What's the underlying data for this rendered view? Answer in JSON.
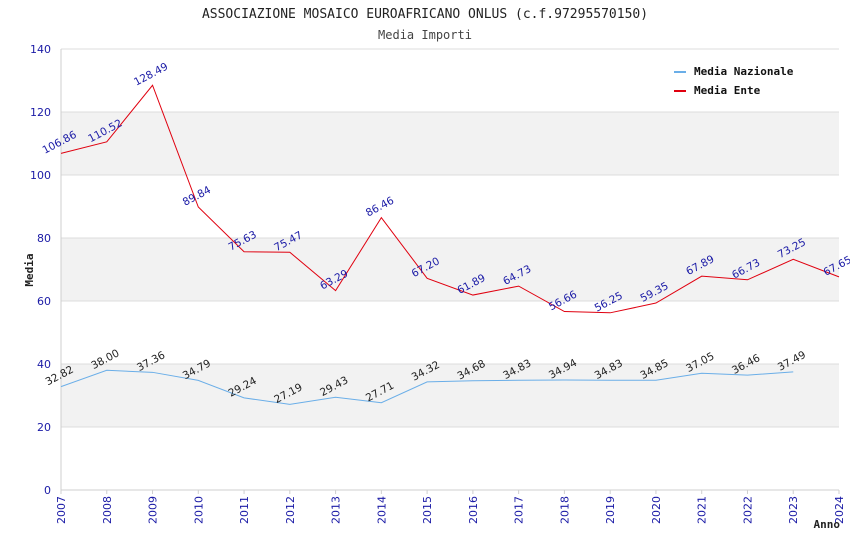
{
  "chart_data": {
    "type": "line",
    "title": "ASSOCIAZIONE MOSAICO EUROAFRICANO ONLUS (c.f.97295570150)",
    "subtitle": "Media Importi",
    "xlabel": "Anno",
    "ylabel": "Media",
    "ylim": [
      0,
      140
    ],
    "yticks": [
      0,
      20,
      40,
      60,
      80,
      100,
      120,
      140
    ],
    "x": [
      2007,
      2008,
      2009,
      2010,
      2011,
      2012,
      2013,
      2014,
      2015,
      2016,
      2017,
      2018,
      2019,
      2020,
      2021,
      2022,
      2023,
      2024
    ],
    "grid": true,
    "legend_position": "top-right",
    "series": [
      {
        "name": "Media Nazionale",
        "color": "#6aaee8",
        "values": [
          32.82,
          38.0,
          37.36,
          34.79,
          29.24,
          27.19,
          29.43,
          27.71,
          34.32,
          34.68,
          34.83,
          34.94,
          34.83,
          34.85,
          37.05,
          36.46,
          37.49,
          null
        ],
        "labels": [
          "32.82",
          "38.00",
          "37.36",
          "34.79",
          "29.24",
          "27.19",
          "29.43",
          "27.71",
          "34.32",
          "34.68",
          "34.83",
          "34.94",
          "34.83",
          "34.85",
          "37.05",
          "36.46",
          "37.49",
          null
        ]
      },
      {
        "name": "Media Ente",
        "color": "#e0000f",
        "values": [
          106.86,
          110.52,
          128.49,
          89.84,
          75.63,
          75.47,
          63.29,
          86.46,
          67.2,
          61.89,
          64.73,
          56.66,
          56.25,
          59.35,
          67.89,
          66.73,
          73.25,
          67.65
        ],
        "labels": [
          "106.86",
          "110.52",
          "128.49",
          "89.84",
          "75.63",
          "75.47",
          "63.29",
          "86.46",
          "67.20",
          "61.89",
          "64.73",
          "56.66",
          "56.25",
          "59.35",
          "67.89",
          "66.73",
          "73.25",
          "67.65"
        ]
      }
    ]
  }
}
